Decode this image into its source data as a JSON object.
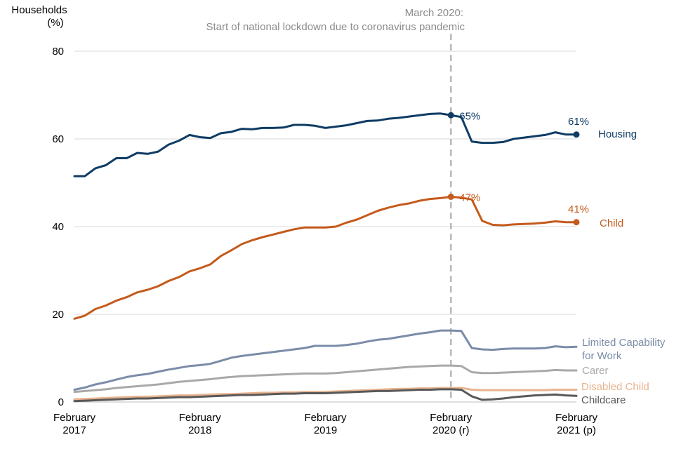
{
  "chart_data": {
    "type": "line",
    "ylabel_line1": "Households",
    "ylabel_line2": "(%)",
    "ylim": [
      0,
      80
    ],
    "yticks": [
      0,
      20,
      40,
      60,
      80
    ],
    "x_range": [
      0,
      48
    ],
    "xticks": [
      {
        "x": 0,
        "line1": "February",
        "line2": "2017"
      },
      {
        "x": 12,
        "line1": "February",
        "line2": "2018"
      },
      {
        "x": 24,
        "line1": "February",
        "line2": "2019"
      },
      {
        "x": 36,
        "line1": "February",
        "line2": "2020 (r)"
      },
      {
        "x": 48,
        "line1": "February",
        "line2": "2021 (p)"
      }
    ],
    "annotation": {
      "x": 36,
      "line1": "March 2020:",
      "line2": "Start of national lockdown due to coronavirus pandemic",
      "color": "#a6a6a6"
    },
    "series": [
      {
        "name": "Housing",
        "label_lines": [
          "Housing"
        ],
        "color": "#0f3c64",
        "values": [
          51.5,
          51.5,
          53.3,
          54.0,
          55.6,
          55.6,
          56.8,
          56.6,
          57.1,
          58.7,
          59.6,
          60.9,
          60.4,
          60.2,
          61.3,
          61.6,
          62.3,
          62.2,
          62.5,
          62.5,
          62.6,
          63.2,
          63.2,
          63.0,
          62.5,
          62.8,
          63.1,
          63.6,
          64.1,
          64.2,
          64.6,
          64.8,
          65.1,
          65.4,
          65.7,
          65.8,
          65.4,
          65.0,
          59.4,
          59.1,
          59.1,
          59.3,
          60.0,
          60.3,
          60.6,
          60.9,
          61.5,
          61.0,
          61.0
        ],
        "markers": [
          {
            "index": 36,
            "label": "65%"
          },
          {
            "index": 48,
            "label": "61%"
          }
        ]
      },
      {
        "name": "Child",
        "label_lines": [
          "Child"
        ],
        "color": "#c45a1c",
        "values": [
          19.0,
          19.7,
          21.2,
          22.0,
          23.1,
          23.9,
          25.0,
          25.6,
          26.4,
          27.6,
          28.5,
          29.8,
          30.5,
          31.4,
          33.3,
          34.6,
          36.0,
          36.9,
          37.6,
          38.2,
          38.8,
          39.4,
          39.8,
          39.8,
          39.8,
          40.0,
          40.9,
          41.6,
          42.6,
          43.6,
          44.3,
          44.9,
          45.3,
          45.9,
          46.3,
          46.5,
          46.8,
          46.6,
          46.2,
          41.3,
          40.4,
          40.3,
          40.5,
          40.6,
          40.7,
          40.9,
          41.2,
          41.0,
          41.0
        ],
        "markers": [
          {
            "index": 36,
            "label": "47%"
          },
          {
            "index": 48,
            "label": "41%"
          }
        ]
      },
      {
        "name": "Limited Capability for Work",
        "label_lines": [
          "Limited Capability",
          "for Work"
        ],
        "color": "#7b8ca8",
        "values": [
          2.8,
          3.3,
          4.0,
          4.5,
          5.1,
          5.7,
          6.1,
          6.4,
          6.9,
          7.4,
          7.8,
          8.2,
          8.4,
          8.7,
          9.4,
          10.1,
          10.5,
          10.8,
          11.1,
          11.4,
          11.7,
          12.0,
          12.3,
          12.8,
          12.8,
          12.8,
          13.0,
          13.3,
          13.8,
          14.2,
          14.4,
          14.8,
          15.2,
          15.6,
          15.9,
          16.3,
          16.3,
          16.2,
          12.3,
          12.0,
          11.9,
          12.1,
          12.2,
          12.2,
          12.2,
          12.3,
          12.7,
          12.5,
          12.6
        ],
        "markers": []
      },
      {
        "name": "Carer",
        "label_lines": [
          "Carer"
        ],
        "color": "#a9a9a9",
        "values": [
          2.3,
          2.5,
          2.7,
          2.9,
          3.2,
          3.4,
          3.6,
          3.8,
          4.0,
          4.3,
          4.6,
          4.8,
          5.0,
          5.2,
          5.5,
          5.7,
          5.9,
          6.0,
          6.1,
          6.2,
          6.3,
          6.4,
          6.5,
          6.5,
          6.5,
          6.6,
          6.8,
          7.0,
          7.2,
          7.4,
          7.6,
          7.8,
          8.0,
          8.1,
          8.2,
          8.3,
          8.3,
          8.2,
          6.8,
          6.6,
          6.6,
          6.7,
          6.8,
          6.9,
          7.0,
          7.1,
          7.3,
          7.2,
          7.2
        ],
        "markers": []
      },
      {
        "name": "Disabled Child",
        "label_lines": [
          "Disabled Child"
        ],
        "color": "#e8b38f",
        "values": [
          0.6,
          0.7,
          0.8,
          0.9,
          1.0,
          1.1,
          1.2,
          1.2,
          1.3,
          1.4,
          1.5,
          1.5,
          1.6,
          1.7,
          1.8,
          1.8,
          1.9,
          2.0,
          2.1,
          2.1,
          2.2,
          2.2,
          2.3,
          2.3,
          2.3,
          2.4,
          2.5,
          2.6,
          2.7,
          2.8,
          2.9,
          3.0,
          3.0,
          3.1,
          3.1,
          3.2,
          3.2,
          3.2,
          2.8,
          2.7,
          2.7,
          2.7,
          2.7,
          2.7,
          2.7,
          2.7,
          2.8,
          2.8,
          2.8
        ],
        "markers": []
      },
      {
        "name": "Childcare",
        "label_lines": [
          "Childcare"
        ],
        "color": "#595959",
        "values": [
          0.2,
          0.3,
          0.4,
          0.5,
          0.6,
          0.7,
          0.8,
          0.8,
          0.9,
          1.0,
          1.1,
          1.1,
          1.2,
          1.3,
          1.4,
          1.5,
          1.6,
          1.6,
          1.7,
          1.8,
          1.9,
          1.9,
          2.0,
          2.0,
          2.0,
          2.1,
          2.2,
          2.3,
          2.4,
          2.5,
          2.5,
          2.6,
          2.7,
          2.8,
          2.8,
          2.9,
          2.9,
          2.8,
          1.3,
          0.5,
          0.6,
          0.8,
          1.1,
          1.3,
          1.5,
          1.6,
          1.7,
          1.5,
          1.4
        ],
        "markers": []
      }
    ]
  }
}
